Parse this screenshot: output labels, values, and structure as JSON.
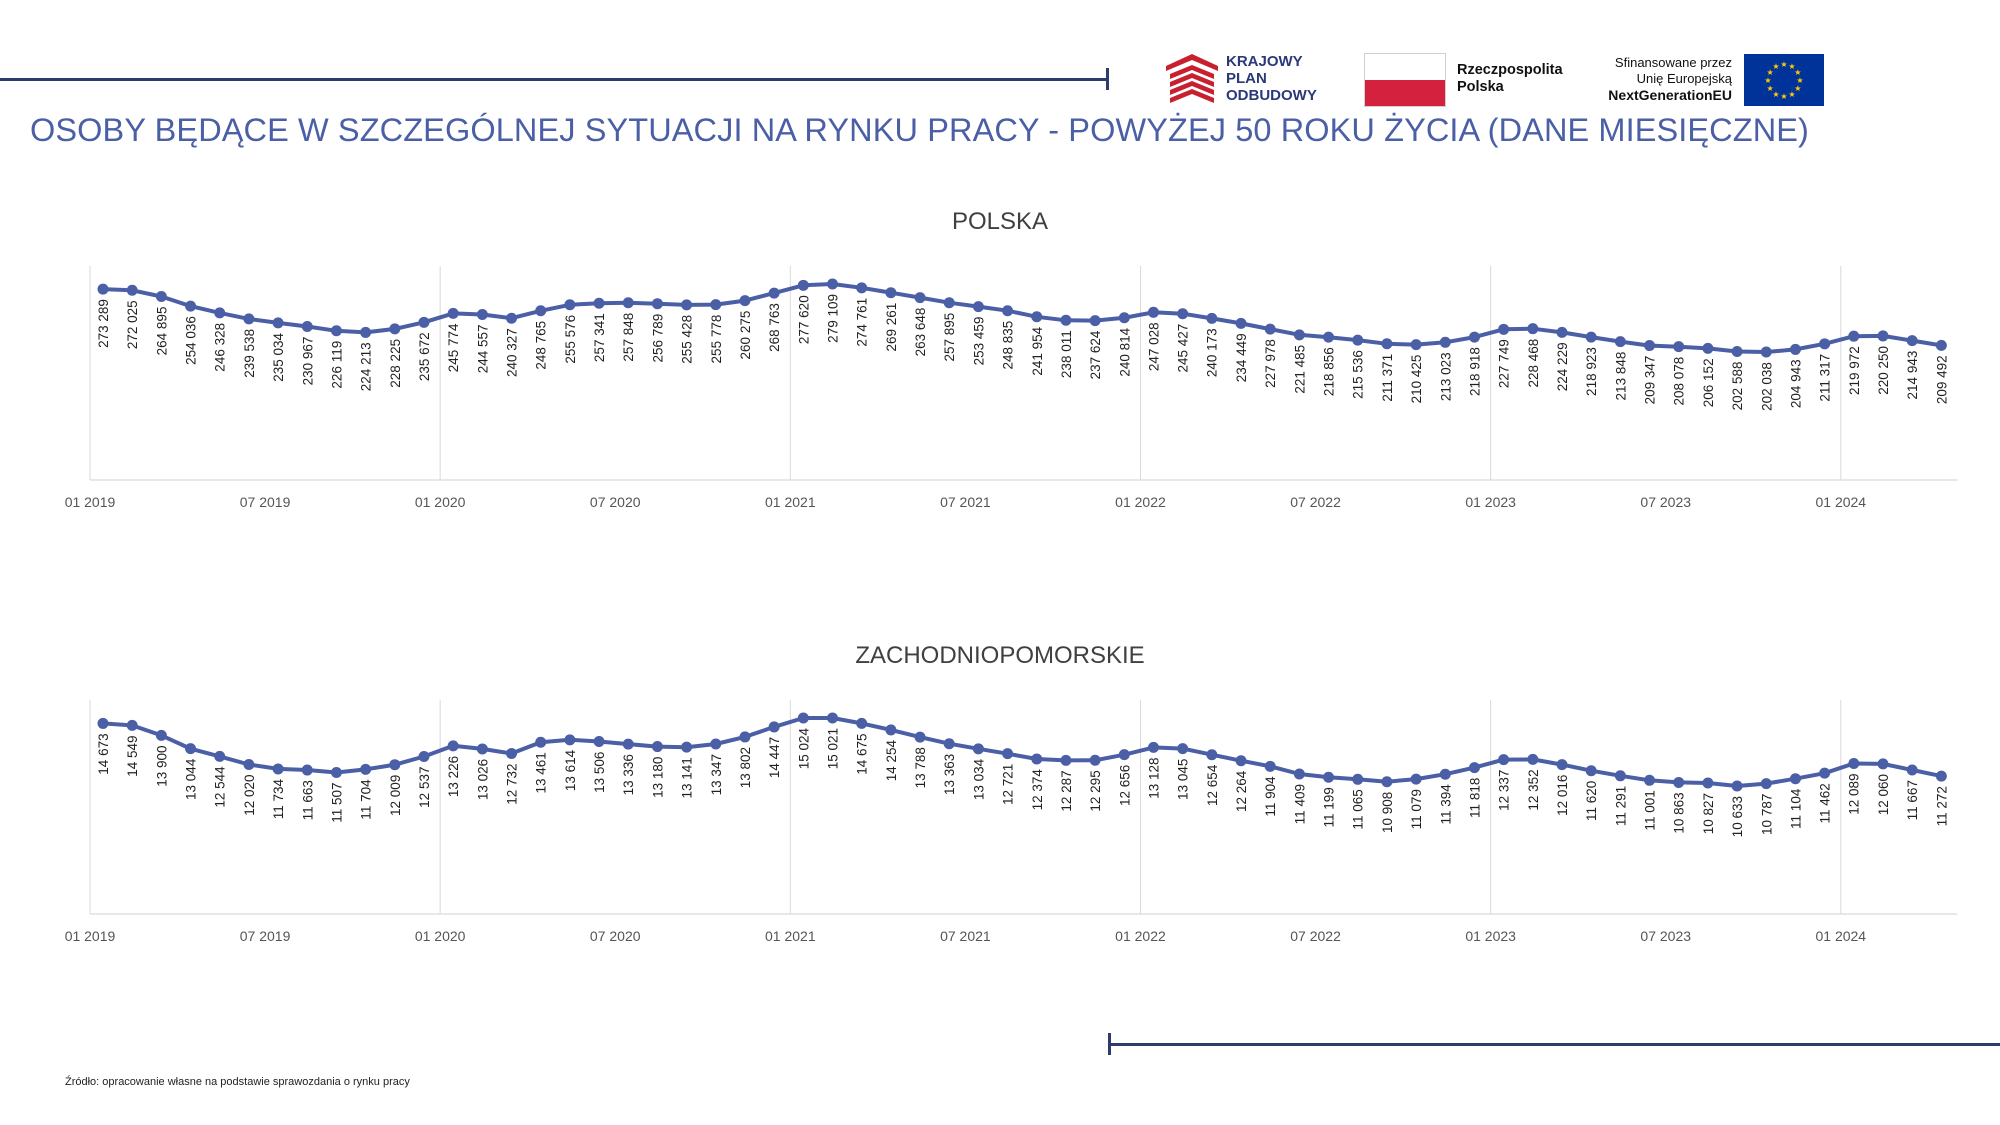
{
  "header": {
    "title": "OSOBY BĘDĄCE W SZCZEGÓLNEJ SYTUACJI NA RYNKU PRACY - POWYŻEJ 50 ROKU ŻYCIA (DANE MIESIĘCZNE)"
  },
  "logos": {
    "kpo": [
      "KRAJOWY",
      "PLAN",
      "ODBUDOWY"
    ],
    "rp": [
      "Rzeczpospolita",
      "Polska"
    ],
    "eu": [
      "Sfinansowane przez",
      "Unię Europejską",
      "NextGenerationEU"
    ]
  },
  "colors": {
    "title": "#4a5fa5",
    "series": "#4a5fa5",
    "rule": "#2f3b6b",
    "kpo_red": "#c8202f",
    "kpo_navy": "#2a3a78",
    "pl_red": "#d4213d",
    "eu_blue": "#003399",
    "eu_star": "#ffcc00"
  },
  "footer": {
    "source": "Źródło: opracowanie własne na podstawie sprawozdania o rynku pracy"
  },
  "chart_data": [
    {
      "type": "line",
      "title": "POLSKA",
      "x_ticks": [
        "01 2019",
        "07 2019",
        "01 2020",
        "07 2020",
        "01 2021",
        "07 2021",
        "01 2022",
        "07 2022",
        "01 2023",
        "07 2023",
        "01 2024"
      ],
      "values": [
        273289,
        272025,
        264895,
        254036,
        246328,
        239538,
        235034,
        230967,
        226119,
        224213,
        228225,
        235672,
        245774,
        244557,
        240327,
        248765,
        255576,
        257341,
        257848,
        256789,
        255428,
        255778,
        260275,
        268763,
        277620,
        279109,
        274761,
        269261,
        263648,
        257895,
        253459,
        248835,
        241954,
        238011,
        237624,
        240814,
        247028,
        245427,
        240173,
        234449,
        227978,
        221485,
        218856,
        215536,
        211371,
        210425,
        213023,
        218918,
        227749,
        228468,
        224229,
        218923,
        213848,
        209347,
        208078,
        206152,
        202588,
        202038,
        204943,
        211317,
        219972,
        220250,
        214943,
        209492
      ],
      "labels": [
        "273 289",
        "272 025",
        "264 895",
        "254 036",
        "246 328",
        "239 538",
        "235 034",
        "230 967",
        "226 119",
        "224 213",
        "228 225",
        "235 672",
        "245 774",
        "244 557",
        "240 327",
        "248 765",
        "255 576",
        "257 341",
        "257 848",
        "256 789",
        "255 428",
        "255 778",
        "260 275",
        "268 763",
        "277 620",
        "279 109",
        "274 761",
        "269 261",
        "263 648",
        "257 895",
        "253 459",
        "248 835",
        "241 954",
        "238 011",
        "237 624",
        "240 814",
        "247 028",
        "245 427",
        "240 173",
        "234 449",
        "227 978",
        "221 485",
        "218 856",
        "215 536",
        "211 371",
        "210 425",
        "213 023",
        "218 918",
        "227 749",
        "228 468",
        "224 229",
        "218 923",
        "213 848",
        "209 347",
        "208 078",
        "206 152",
        "202 588",
        "202 038",
        "204 943",
        "211 317",
        "219 972",
        "220 250",
        "214 943",
        "209 492"
      ]
    },
    {
      "type": "line",
      "title": "ZACHODNIOPOMORSKIE",
      "x_ticks": [
        "01 2019",
        "07 2019",
        "01 2020",
        "07 2020",
        "01 2021",
        "07 2021",
        "01 2022",
        "07 2022",
        "01 2023",
        "07 2023",
        "01 2024"
      ],
      "values": [
        14673,
        14549,
        13900,
        13044,
        12544,
        12020,
        11734,
        11663,
        11507,
        11704,
        12009,
        12537,
        13226,
        13026,
        12732,
        13461,
        13614,
        13506,
        13336,
        13180,
        13141,
        13347,
        13802,
        14447,
        15024,
        15021,
        14675,
        14254,
        13788,
        13363,
        13034,
        12721,
        12374,
        12287,
        12295,
        12656,
        13128,
        13045,
        12654,
        12264,
        11904,
        11409,
        11199,
        11065,
        10908,
        11079,
        11394,
        11818,
        12337,
        12352,
        12016,
        11620,
        11291,
        11001,
        10863,
        10827,
        10633,
        10787,
        11104,
        11462,
        12089,
        12060,
        11667,
        11272
      ],
      "labels": [
        "14 673",
        "14 549",
        "13 900",
        "13 044",
        "12 544",
        "12 020",
        "11 734",
        "11 663",
        "11 507",
        "11 704",
        "12 009",
        "12 537",
        "13 226",
        "13 026",
        "12 732",
        "13 461",
        "13 614",
        "13 506",
        "13 336",
        "13 180",
        "13 141",
        "13 347",
        "13 802",
        "14 447",
        "15 024",
        "15 021",
        "14 675",
        "14 254",
        "13 788",
        "13 363",
        "13 034",
        "12 721",
        "12 374",
        "12 287",
        "12 295",
        "12 656",
        "13 128",
        "13 045",
        "12 654",
        "12 264",
        "11 904",
        "11 409",
        "11 199",
        "11 065",
        "10 908",
        "11 079",
        "11 394",
        "11 818",
        "12 337",
        "12 352",
        "12 016",
        "11 620",
        "11 291",
        "11 001",
        "10 863",
        "10 827",
        "10 633",
        "10 787",
        "11 104",
        "11 462",
        "12 089",
        "12 060",
        "11 667",
        "11 272"
      ]
    }
  ]
}
